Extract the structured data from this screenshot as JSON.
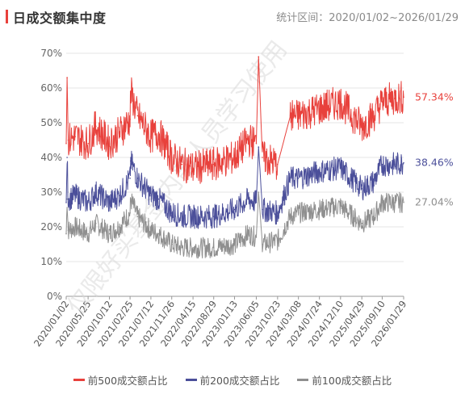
{
  "header": {
    "title": "日成交额集中度",
    "range_label": "统计区间：",
    "range_value": "2020/01/02~2026/01/29"
  },
  "watermark": "仅限好买基金内部人员学习使用",
  "colors": {
    "top500": "#e8413c",
    "top200": "#4b4f9a",
    "top100": "#8f8f8f"
  },
  "chart_data": {
    "type": "line",
    "title": "日成交额集中度",
    "ylim": [
      0,
      70
    ],
    "y_ticks": [
      "0%",
      "10%",
      "20%",
      "30%",
      "40%",
      "50%",
      "60%",
      "70%"
    ],
    "x_ticks": [
      "2020/01/02",
      "2020/05/25",
      "2020/10/12",
      "2021/02/25",
      "2021/07/12",
      "2021/11/26",
      "2022/04/15",
      "2022/08/29",
      "2023/01/13",
      "2023/06/05",
      "2023/10/23",
      "2024/03/08",
      "2024/07/24",
      "2024/12/10",
      "2025/04/29",
      "2025/09/10",
      "2026/01/29"
    ],
    "grid": true,
    "legend_position": "bottom",
    "series": [
      {
        "name": "前500成交额占比",
        "color_key": "top500",
        "end_label": "57.34%",
        "values": [
          {
            "x": "2020/01/02",
            "y": 44
          },
          {
            "x": "2020/01/08",
            "y": 63
          },
          {
            "x": "2020/01/15",
            "y": 45
          },
          {
            "x": "2020/03/01",
            "y": 46
          },
          {
            "x": "2020/05/25",
            "y": 44
          },
          {
            "x": "2020/07/15",
            "y": 49
          },
          {
            "x": "2020/10/12",
            "y": 44
          },
          {
            "x": "2020/12/15",
            "y": 47
          },
          {
            "x": "2021/02/25",
            "y": 51
          },
          {
            "x": "2021/03/01",
            "y": 59
          },
          {
            "x": "2021/04/15",
            "y": 52
          },
          {
            "x": "2021/07/12",
            "y": 46
          },
          {
            "x": "2021/09/01",
            "y": 47
          },
          {
            "x": "2021/11/26",
            "y": 40
          },
          {
            "x": "2022/02/01",
            "y": 38
          },
          {
            "x": "2022/04/15",
            "y": 37
          },
          {
            "x": "2022/08/29",
            "y": 38
          },
          {
            "x": "2023/01/13",
            "y": 40
          },
          {
            "x": "2023/04/15",
            "y": 45
          },
          {
            "x": "2023/06/05",
            "y": 44
          },
          {
            "x": "2023/06/20",
            "y": 69
          },
          {
            "x": "2023/07/15",
            "y": 40
          },
          {
            "x": "2023/10/23",
            "y": 38
          },
          {
            "x": "2024/01/15",
            "y": 52
          },
          {
            "x": "2024/03/08",
            "y": 52
          },
          {
            "x": "2024/07/24",
            "y": 54
          },
          {
            "x": "2024/12/10",
            "y": 56
          },
          {
            "x": "2025/04/29",
            "y": 49
          },
          {
            "x": "2025/07/15",
            "y": 52
          },
          {
            "x": "2025/09/10",
            "y": 56
          },
          {
            "x": "2025/12/01",
            "y": 57
          },
          {
            "x": "2026/01/29",
            "y": 57.34
          }
        ]
      },
      {
        "name": "前200成交额占比",
        "color_key": "top200",
        "end_label": "38.46%",
        "values": [
          {
            "x": "2020/01/02",
            "y": 27
          },
          {
            "x": "2020/01/08",
            "y": 40
          },
          {
            "x": "2020/01/15",
            "y": 28
          },
          {
            "x": "2020/03/01",
            "y": 29
          },
          {
            "x": "2020/05/25",
            "y": 27
          },
          {
            "x": "2020/07/15",
            "y": 30
          },
          {
            "x": "2020/10/12",
            "y": 27
          },
          {
            "x": "2020/12/15",
            "y": 29
          },
          {
            "x": "2021/02/25",
            "y": 34
          },
          {
            "x": "2021/03/01",
            "y": 39
          },
          {
            "x": "2021/04/15",
            "y": 34
          },
          {
            "x": "2021/07/12",
            "y": 29
          },
          {
            "x": "2021/09/01",
            "y": 28
          },
          {
            "x": "2021/11/26",
            "y": 24
          },
          {
            "x": "2022/02/01",
            "y": 23
          },
          {
            "x": "2022/04/15",
            "y": 23
          },
          {
            "x": "2022/08/29",
            "y": 23
          },
          {
            "x": "2023/01/13",
            "y": 25
          },
          {
            "x": "2023/04/15",
            "y": 28
          },
          {
            "x": "2023/06/05",
            "y": 27
          },
          {
            "x": "2023/06/20",
            "y": 43
          },
          {
            "x": "2023/07/15",
            "y": 25
          },
          {
            "x": "2023/10/23",
            "y": 24
          },
          {
            "x": "2024/01/15",
            "y": 34
          },
          {
            "x": "2024/03/08",
            "y": 34
          },
          {
            "x": "2024/07/24",
            "y": 36
          },
          {
            "x": "2024/12/10",
            "y": 37
          },
          {
            "x": "2025/04/29",
            "y": 31
          },
          {
            "x": "2025/07/15",
            "y": 33
          },
          {
            "x": "2025/09/10",
            "y": 38
          },
          {
            "x": "2025/12/01",
            "y": 38
          },
          {
            "x": "2026/01/29",
            "y": 38.46
          }
        ]
      },
      {
        "name": "前100成交额占比",
        "color_key": "top100",
        "end_label": "27.04%",
        "values": [
          {
            "x": "2020/01/02",
            "y": 18
          },
          {
            "x": "2020/01/08",
            "y": 28
          },
          {
            "x": "2020/01/15",
            "y": 19
          },
          {
            "x": "2020/03/01",
            "y": 20
          },
          {
            "x": "2020/05/25",
            "y": 18
          },
          {
            "x": "2020/07/15",
            "y": 21
          },
          {
            "x": "2020/10/12",
            "y": 18
          },
          {
            "x": "2020/12/15",
            "y": 20
          },
          {
            "x": "2021/02/25",
            "y": 24
          },
          {
            "x": "2021/03/01",
            "y": 28
          },
          {
            "x": "2021/04/15",
            "y": 23
          },
          {
            "x": "2021/07/12",
            "y": 19
          },
          {
            "x": "2021/09/01",
            "y": 18
          },
          {
            "x": "2021/11/26",
            "y": 15
          },
          {
            "x": "2022/02/01",
            "y": 14
          },
          {
            "x": "2022/04/15",
            "y": 14
          },
          {
            "x": "2022/08/29",
            "y": 14
          },
          {
            "x": "2023/01/13",
            "y": 15
          },
          {
            "x": "2023/04/15",
            "y": 18
          },
          {
            "x": "2023/06/05",
            "y": 17
          },
          {
            "x": "2023/06/20",
            "y": 30
          },
          {
            "x": "2023/07/15",
            "y": 15
          },
          {
            "x": "2023/10/23",
            "y": 16
          },
          {
            "x": "2024/01/15",
            "y": 23
          },
          {
            "x": "2024/03/08",
            "y": 24
          },
          {
            "x": "2024/07/24",
            "y": 25
          },
          {
            "x": "2024/12/10",
            "y": 26
          },
          {
            "x": "2025/04/29",
            "y": 21
          },
          {
            "x": "2025/07/15",
            "y": 23
          },
          {
            "x": "2025/09/10",
            "y": 27
          },
          {
            "x": "2025/12/01",
            "y": 27
          },
          {
            "x": "2026/01/29",
            "y": 27.04
          }
        ]
      }
    ]
  }
}
